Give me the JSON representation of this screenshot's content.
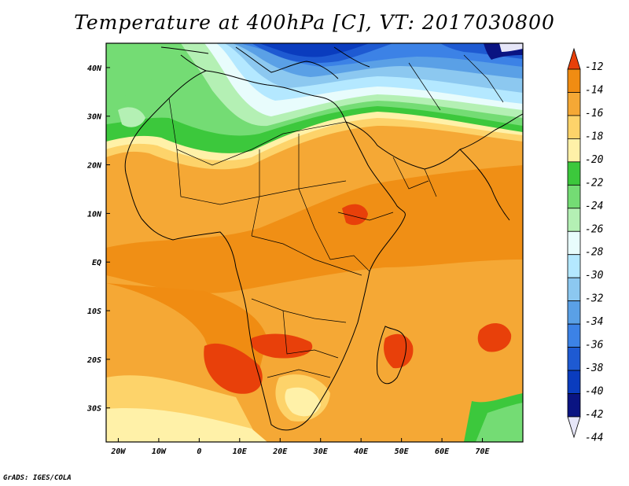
{
  "title": "Temperature at 400hPa [C], VT: 2017030800",
  "footer": "GrADS: IGES/COLA",
  "colors": {
    "t_-12": "#e8400a",
    "t_-14": "#f08c12",
    "t_-16": "#f5a835",
    "t_-18": "#fdd36a",
    "t_-20": "#fff1a8",
    "t_-22": "#3cc83c",
    "t_-24": "#74dc74",
    "t_-26": "#b4f0b4",
    "t_-28": "#e8fcfc",
    "t_-30": "#b4e8ff",
    "t_-32": "#8cc8f0",
    "t_-34": "#5aa0e6",
    "t_-36": "#3c82e6",
    "t_-38": "#1e5ad2",
    "t_-40": "#0a3cbe",
    "t_-42": "#0a1482",
    "t_-44": "#e6e6f8"
  },
  "map": {
    "lon_range": [
      -23,
      80
    ],
    "lat_range": [
      -37,
      45
    ],
    "x_ticks": [
      {
        "label": "20W",
        "value": -20
      },
      {
        "label": "10W",
        "value": -10
      },
      {
        "label": "0",
        "value": 0
      },
      {
        "label": "10E",
        "value": 10
      },
      {
        "label": "20E",
        "value": 20
      },
      {
        "label": "30E",
        "value": 30
      },
      {
        "label": "40E",
        "value": 40
      },
      {
        "label": "50E",
        "value": 50
      },
      {
        "label": "60E",
        "value": 60
      },
      {
        "label": "70E",
        "value": 70
      }
    ],
    "y_ticks": [
      {
        "label": "40N",
        "value": 40
      },
      {
        "label": "30N",
        "value": 30
      },
      {
        "label": "20N",
        "value": 20
      },
      {
        "label": "10N",
        "value": 10
      },
      {
        "label": "EQ",
        "value": 0
      },
      {
        "label": "10S",
        "value": -10
      },
      {
        "label": "20S",
        "value": -20
      },
      {
        "label": "30S",
        "value": -30
      }
    ]
  },
  "colorbar": {
    "bins": [
      {
        "label": "-12",
        "color": "#e8400a"
      },
      {
        "label": "-14",
        "color": "#f08c12"
      },
      {
        "label": "-16",
        "color": "#f5a835"
      },
      {
        "label": "-18",
        "color": "#fdd36a"
      },
      {
        "label": "-20",
        "color": "#fff1a8"
      },
      {
        "label": "-22",
        "color": "#3cc83c"
      },
      {
        "label": "-24",
        "color": "#74dc74"
      },
      {
        "label": "-26",
        "color": "#b4f0b4"
      },
      {
        "label": "-28",
        "color": "#e8fcfc"
      },
      {
        "label": "-30",
        "color": "#b4e8ff"
      },
      {
        "label": "-32",
        "color": "#8cc8f0"
      },
      {
        "label": "-34",
        "color": "#5aa0e6"
      },
      {
        "label": "-36",
        "color": "#3c82e6"
      },
      {
        "label": "-38",
        "color": "#1e5ad2"
      },
      {
        "label": "-40",
        "color": "#0a3cbe"
      },
      {
        "label": "-42",
        "color": "#0a1482"
      },
      {
        "label": "-44",
        "color": "#e6e6f8"
      }
    ]
  }
}
